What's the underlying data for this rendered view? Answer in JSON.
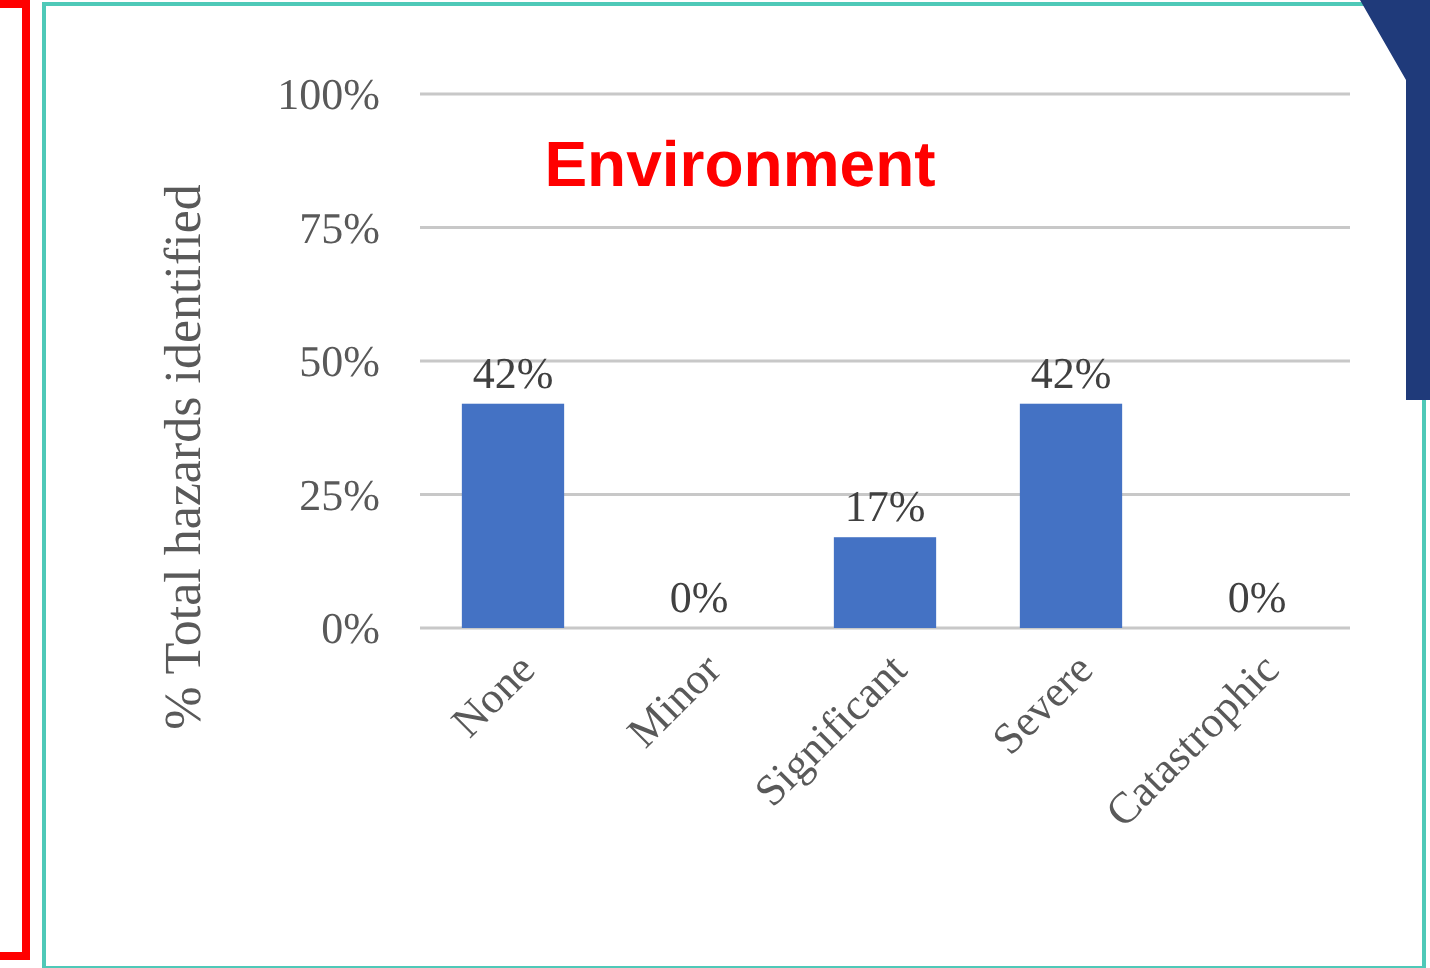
{
  "chart_data": {
    "type": "bar",
    "title": "Environment",
    "ylabel": "% Total hazards identified",
    "categories": [
      "None",
      "Minor",
      "Significant",
      "Severe",
      "Catastrophic"
    ],
    "values": [
      42,
      0,
      17,
      42,
      0
    ],
    "color": "#4472c4",
    "value_labels": [
      "42%",
      "0%",
      "17%",
      "42%",
      "0%"
    ],
    "ylim": [
      0,
      100
    ],
    "yticks": [
      {
        "value": 0,
        "label": "0%"
      },
      {
        "value": 25,
        "label": "25%"
      },
      {
        "value": 50,
        "label": "50%"
      },
      {
        "value": 75,
        "label": "75%"
      },
      {
        "value": 100,
        "label": "100%"
      }
    ],
    "grid": "y"
  }
}
